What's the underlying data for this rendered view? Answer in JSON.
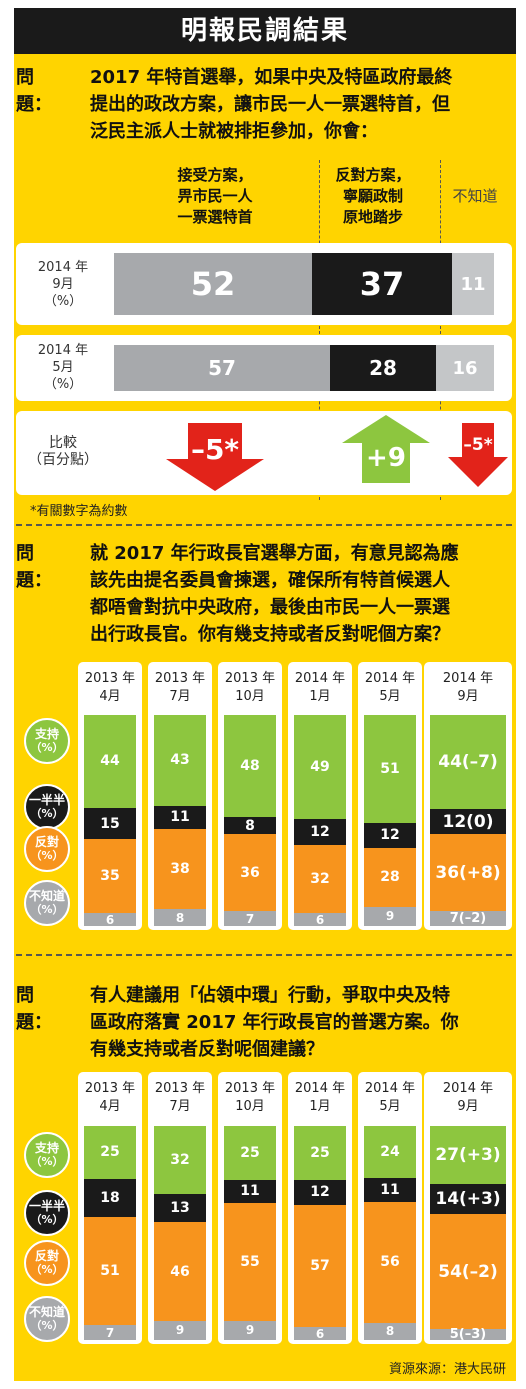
{
  "title": "明報民調結果",
  "section1": {
    "q_label": "問題：",
    "question_lines": [
      "2017 年特首選舉，如果中央及特區政府最終",
      "提出的政改方案，讓市民一人一票選特首，但",
      "泛民主派人士就被排拒參加，你會："
    ],
    "col_accept": [
      "接受方案，",
      "畀市民一人",
      "一票選特首"
    ],
    "col_oppose": [
      "反對方案，",
      "寧願政制",
      "原地踏步"
    ],
    "col_unknown": "不知道",
    "rows": [
      {
        "label": [
          "2014 年",
          "9月",
          "（%）"
        ],
        "values": [
          "52",
          "37",
          "11"
        ]
      },
      {
        "label": [
          "2014 年",
          "5月",
          "（%）"
        ],
        "values": [
          "57",
          "28",
          "16"
        ]
      }
    ],
    "compare_label": [
      "比較",
      "（百分點）"
    ],
    "changes": [
      "–5*",
      "+9",
      "–5*"
    ],
    "note": "*有關數字為約數"
  },
  "section2": {
    "q_label": "問題：",
    "question_lines": [
      "就 2017 年行政長官選舉方面，有意見認為應",
      "該先由提名委員會揀選，確保所有特首候選人",
      "都唔會對抗中央政府，最後由市民一人一票選",
      "出行政長官。你有幾支持或者反對呢個方案？"
    ],
    "columns": [
      {
        "year": "2013 年",
        "month": "4月",
        "values": [
          "44",
          "15",
          "35",
          "6"
        ]
      },
      {
        "year": "2013 年",
        "month": "7月",
        "values": [
          "43",
          "11",
          "38",
          "8"
        ]
      },
      {
        "year": "2013 年",
        "month": "10月",
        "values": [
          "48",
          "8",
          "36",
          "7"
        ]
      },
      {
        "year": "2014 年",
        "month": "1月",
        "values": [
          "49",
          "12",
          "32",
          "6"
        ]
      },
      {
        "year": "2014 年",
        "month": "5月",
        "values": [
          "51",
          "12",
          "28",
          "9"
        ]
      },
      {
        "year": "2014 年",
        "month": "9月",
        "values": [
          "44(–7)",
          "12(0)",
          "36(+8)",
          "7(–2)"
        ]
      }
    ]
  },
  "section3": {
    "q_label": "問題：",
    "question_lines": [
      "有人建議用「佔領中環」行動，爭取中央及特",
      "區政府落實 2017 年行政長官的普選方案。你",
      "有幾支持或者反對呢個建議？"
    ],
    "columns": [
      {
        "year": "2013 年",
        "month": "4月",
        "values": [
          "25",
          "18",
          "51",
          "7"
        ]
      },
      {
        "year": "2013 年",
        "month": "7月",
        "values": [
          "32",
          "13",
          "46",
          "9"
        ]
      },
      {
        "year": "2013 年",
        "month": "10月",
        "values": [
          "25",
          "11",
          "55",
          "9"
        ]
      },
      {
        "year": "2014 年",
        "month": "1月",
        "values": [
          "25",
          "12",
          "57",
          "6"
        ]
      },
      {
        "year": "2014 年",
        "month": "5月",
        "values": [
          "24",
          "11",
          "56",
          "8"
        ]
      },
      {
        "year": "2014 年",
        "month": "9月",
        "values": [
          "27(+3)",
          "14(+3)",
          "54(–2)",
          "5(–3)"
        ]
      }
    ]
  },
  "legend": [
    {
      "name": "支持",
      "unit": "（%）",
      "color": "#8dc63f"
    },
    {
      "name": "一半半",
      "unit": "（%）",
      "color": "#1a1a1a"
    },
    {
      "name": "反對",
      "unit": "（%）",
      "color": "#f7941d"
    },
    {
      "name": "不知道",
      "unit": "（%）",
      "color": "#a7a9ac"
    }
  ],
  "source": "資源來源：港大民研",
  "chart_data": [
    {
      "type": "bar",
      "orientation": "horizontal-stacked",
      "categories": [
        "2014 年 9月",
        "2014 年 5月"
      ],
      "series": [
        {
          "name": "接受方案，畀市民一人一票選特首",
          "values": [
            52,
            57
          ]
        },
        {
          "name": "反對方案，寧願政制原地踏步",
          "values": [
            37,
            28
          ]
        },
        {
          "name": "不知道",
          "values": [
            11,
            16
          ]
        }
      ],
      "changes": [
        -5,
        9,
        -5
      ]
    },
    {
      "type": "bar",
      "orientation": "vertical-stacked",
      "categories": [
        "2013 年 4月",
        "2013 年 7月",
        "2013 年 10月",
        "2014 年 1月",
        "2014 年 5月",
        "2014 年 9月"
      ],
      "series": [
        {
          "name": "支持",
          "values": [
            44,
            43,
            48,
            49,
            51,
            44
          ]
        },
        {
          "name": "一半半",
          "values": [
            15,
            11,
            8,
            12,
            12,
            12
          ]
        },
        {
          "name": "反對",
          "values": [
            35,
            38,
            36,
            32,
            28,
            36
          ]
        },
        {
          "name": "不知道",
          "values": [
            6,
            8,
            7,
            6,
            9,
            7
          ]
        }
      ],
      "changes": [
        -7,
        0,
        8,
        -2
      ]
    },
    {
      "type": "bar",
      "orientation": "vertical-stacked",
      "categories": [
        "2013 年 4月",
        "2013 年 7月",
        "2013 年 10月",
        "2014 年 1月",
        "2014 年 5月",
        "2014 年 9月"
      ],
      "series": [
        {
          "name": "支持",
          "values": [
            25,
            32,
            25,
            25,
            24,
            27
          ]
        },
        {
          "name": "一半半",
          "values": [
            18,
            13,
            11,
            12,
            11,
            14
          ]
        },
        {
          "name": "反對",
          "values": [
            51,
            46,
            55,
            57,
            56,
            54
          ]
        },
        {
          "name": "不知道",
          "values": [
            7,
            9,
            9,
            6,
            8,
            5
          ]
        }
      ],
      "changes": [
        3,
        3,
        -2,
        -3
      ]
    }
  ]
}
